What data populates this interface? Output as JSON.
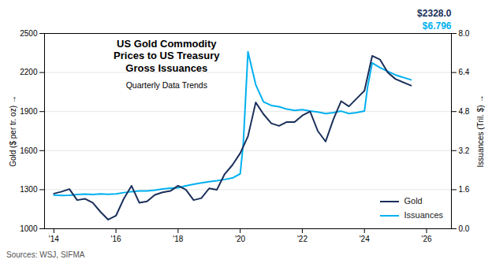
{
  "chart_data": {
    "type": "line",
    "title": "US Gold Commodity\nPrices to US Treasury\nGross Issuances",
    "subtitle": "Quarterly Data Trends",
    "ylabel": "Gold ($ per tr. oz)",
    "y2label": "Issuances (Tril. $)",
    "source": "Sources: WSJ, SIFMA",
    "annotations": [
      {
        "text": "$2328.0",
        "color": "#1a2f5a"
      },
      {
        "text": "$6.796",
        "color": "#00b0f0"
      }
    ],
    "xlim": [
      2013.7,
      2026.8
    ],
    "xticks": [
      {
        "value": 2014,
        "label": "'14"
      },
      {
        "value": 2016,
        "label": "'16"
      },
      {
        "value": 2018,
        "label": "'18"
      },
      {
        "value": 2020,
        "label": "'20"
      },
      {
        "value": 2022,
        "label": "'22"
      },
      {
        "value": 2024,
        "label": "'24"
      },
      {
        "value": 2026,
        "label": "'26"
      }
    ],
    "ylim": [
      1000,
      2500
    ],
    "yticks": [
      1000,
      1300,
      1600,
      1900,
      2200,
      2500
    ],
    "y2lim": [
      0.0,
      8.0
    ],
    "y2ticks": [
      {
        "value": 0.0,
        "label": "0.0"
      },
      1.6,
      3.2,
      4.8,
      6.4,
      {
        "value": 8.0,
        "label": "8.0"
      }
    ],
    "grid": true,
    "legend": "lower right",
    "series": [
      {
        "name": "Gold",
        "color": "#1a2f5a",
        "x": [
          2014.0,
          2014.25,
          2014.5,
          2014.75,
          2015.0,
          2015.25,
          2015.5,
          2015.75,
          2016.0,
          2016.25,
          2016.5,
          2016.75,
          2017.0,
          2017.25,
          2017.5,
          2017.75,
          2018.0,
          2018.25,
          2018.5,
          2018.75,
          2019.0,
          2019.25,
          2019.5,
          2019.75,
          2020.0,
          2020.25,
          2020.5,
          2020.75,
          2021.0,
          2021.25,
          2021.5,
          2021.75,
          2022.0,
          2022.25,
          2022.5,
          2022.75,
          2023.0,
          2023.25,
          2023.5,
          2023.75,
          2024.0,
          2024.25,
          2024.5,
          2024.75,
          2025.0,
          2025.5
        ],
        "values": [
          1270,
          1285,
          1305,
          1220,
          1230,
          1200,
          1130,
          1070,
          1100,
          1230,
          1330,
          1200,
          1210,
          1260,
          1280,
          1290,
          1330,
          1300,
          1220,
          1235,
          1310,
          1300,
          1420,
          1490,
          1580,
          1710,
          1970,
          1880,
          1810,
          1790,
          1820,
          1820,
          1870,
          1900,
          1750,
          1670,
          1840,
          1980,
          1940,
          2000,
          2060,
          2328,
          2300,
          2200,
          2150,
          2100
        ]
      },
      {
        "name": "Issuances",
        "color": "#00b0f0",
        "axis": "y2",
        "x": [
          2014.0,
          2014.25,
          2014.5,
          2014.75,
          2015.0,
          2015.25,
          2015.5,
          2015.75,
          2016.0,
          2016.25,
          2016.5,
          2016.75,
          2017.0,
          2017.25,
          2017.5,
          2017.75,
          2018.0,
          2018.25,
          2018.5,
          2018.75,
          2019.0,
          2019.25,
          2019.5,
          2019.75,
          2020.0,
          2020.1,
          2020.25,
          2020.5,
          2020.75,
          2021.0,
          2021.25,
          2021.5,
          2021.75,
          2022.0,
          2022.25,
          2022.5,
          2022.75,
          2023.0,
          2023.25,
          2023.5,
          2023.75,
          2024.0,
          2024.1,
          2024.25,
          2024.5,
          2024.75,
          2025.0,
          2025.5
        ],
        "values": [
          1.38,
          1.36,
          1.37,
          1.4,
          1.42,
          1.4,
          1.43,
          1.41,
          1.43,
          1.48,
          1.52,
          1.55,
          1.55,
          1.58,
          1.63,
          1.66,
          1.68,
          1.76,
          1.82,
          1.88,
          1.93,
          1.97,
          2.02,
          2.08,
          2.25,
          3.5,
          7.25,
          5.9,
          5.2,
          5.05,
          5.0,
          4.9,
          4.85,
          4.88,
          4.82,
          4.78,
          4.72,
          4.76,
          4.82,
          4.72,
          4.76,
          4.82,
          5.8,
          6.796,
          6.6,
          6.45,
          6.3,
          6.1
        ]
      }
    ]
  }
}
